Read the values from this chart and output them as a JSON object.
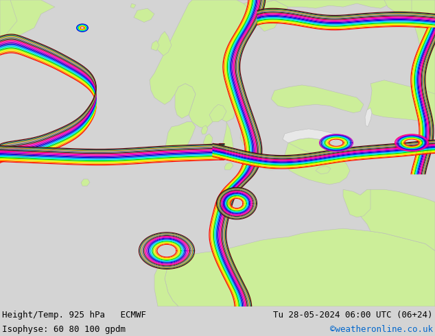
{
  "title_left": "Height/Temp. 925 hPa   ECMWF",
  "title_right": "Tu 28-05-2024 06:00 UTC (06+24)",
  "subtitle_left": "Isophyse: 60 80 100 gpdm",
  "subtitle_right": "©weatheronline.co.uk",
  "subtitle_right_color": "#0066cc",
  "land_color": "#ccee99",
  "ocean_color": "#e8e8e8",
  "bottom_bar_color": "#d4d4d4",
  "text_color": "#000000",
  "font_family": "monospace",
  "title_fontsize": 9,
  "subtitle_fontsize": 9,
  "fig_width": 6.34,
  "fig_height": 4.9,
  "dpi": 100,
  "contour_colors": [
    "#ff0000",
    "#ff6600",
    "#ffcc00",
    "#ffff00",
    "#99ff00",
    "#00cc00",
    "#00ffcc",
    "#00ccff",
    "#0066ff",
    "#0000cc",
    "#6600cc",
    "#cc00cc",
    "#ff00cc",
    "#ff0066",
    "#333333",
    "#666666",
    "#999999",
    "#cc9900",
    "#006666",
    "#660000"
  ]
}
